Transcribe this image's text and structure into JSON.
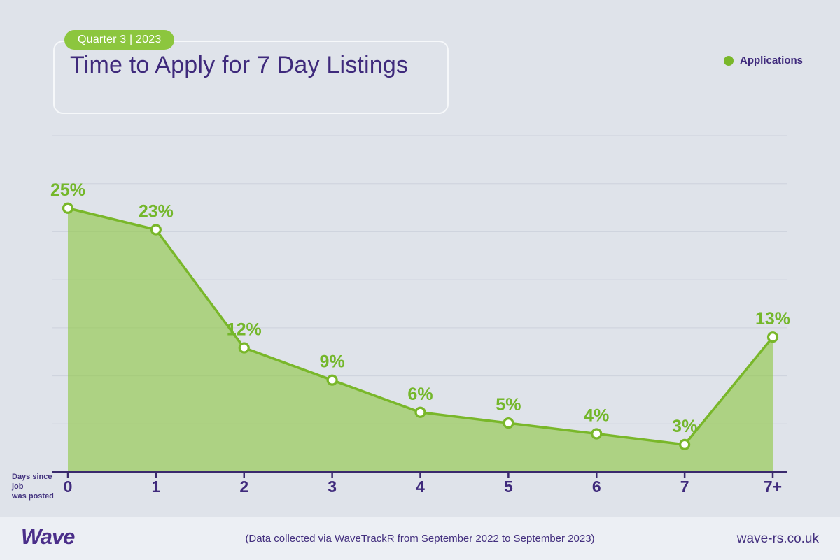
{
  "header": {
    "badge_label": "Quarter 3 | 2023",
    "title": "Time to Apply for 7 Day Listings"
  },
  "legend": {
    "items": [
      {
        "label": "Applications",
        "color": "#79b72a"
      }
    ]
  },
  "axis_note": {
    "line1": "Days since job",
    "line2": "was posted"
  },
  "footer": {
    "logo_text": "Wave",
    "note": "(Data collected via WaveTrackR from September 2022 to September 2023)",
    "website": "wave-rs.co.uk"
  },
  "colors": {
    "background": "#dfe3ea",
    "footer_background": "#eceff4",
    "accent_green": "#79b72a",
    "label_green": "#74b72b",
    "badge_green": "#8cc63e",
    "area_fill": "rgba(140,198,62,0.6)",
    "marker_fill": "#ffffff",
    "purple": "#3f2a7c",
    "axis_purple": "#3a2a6d",
    "gridline": "#cdd2dc"
  },
  "chart_data": {
    "type": "area",
    "title": "Time to Apply for 7 Day Listings",
    "subtitle": "Quarter 3 | 2023",
    "categories": [
      "0",
      "1",
      "2",
      "3",
      "4",
      "5",
      "6",
      "7",
      "7+"
    ],
    "series": [
      {
        "name": "Applications",
        "values": [
          25,
          23,
          12,
          9,
          6,
          5,
          4,
          3,
          13
        ]
      }
    ],
    "unit": "%",
    "xlabel": "Days since job was posted",
    "ylabel": "",
    "ylim": [
      0,
      31.5
    ],
    "grid": "horizontal",
    "gridline_count": 7,
    "data_labels": true,
    "markers": "circle",
    "legend_position": "top-right"
  }
}
